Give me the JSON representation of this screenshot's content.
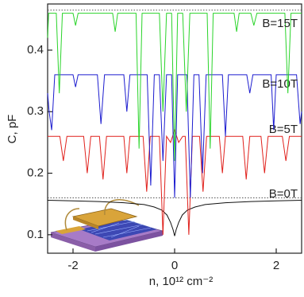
{
  "chart_data": {
    "type": "line",
    "xlabel": "n, 10¹² cm⁻²",
    "ylabel": "C, pF",
    "xlim": [
      -2.5,
      2.5
    ],
    "ylim": [
      0.07,
      0.475
    ],
    "xticks": [
      -2,
      0,
      2
    ],
    "yticks": [
      0.1,
      0.2,
      0.3,
      0.4
    ],
    "reference_lines": [
      0.465,
      0.16
    ],
    "series": [
      {
        "name": "B=0T",
        "color": "#111111",
        "x": [
          -2.5,
          -2.0,
          -1.5,
          -1.0,
          -0.6,
          -0.4,
          -0.25,
          -0.15,
          -0.08,
          -0.03,
          0,
          0.03,
          0.08,
          0.15,
          0.25,
          0.4,
          0.6,
          1.0,
          1.5,
          2.0,
          2.5
        ],
        "values": [
          0.156,
          0.155,
          0.154,
          0.152,
          0.149,
          0.145,
          0.14,
          0.132,
          0.12,
          0.108,
          0.098,
          0.108,
          0.12,
          0.132,
          0.14,
          0.145,
          0.149,
          0.152,
          0.154,
          0.155,
          0.156
        ]
      },
      {
        "name": "B=5T",
        "color": "#e0201b",
        "x": [
          -2.5,
          -2.26,
          -2.19,
          -2.12,
          -1.79,
          -1.72,
          -1.65,
          -1.48,
          -1.41,
          -1.34,
          -1.0,
          -0.94,
          -0.88,
          -0.62,
          -0.55,
          -0.48,
          -0.3,
          -0.23,
          -0.16,
          -0.08,
          0,
          0.08,
          0.16,
          0.21,
          0.28,
          0.35,
          0.49,
          0.56,
          0.63,
          0.88,
          0.94,
          1.0,
          1.34,
          1.41,
          1.48,
          1.7,
          1.77,
          1.84,
          2.12,
          2.19,
          2.26,
          2.5
        ],
        "values": [
          0.26,
          0.26,
          0.22,
          0.26,
          0.26,
          0.2,
          0.26,
          0.26,
          0.19,
          0.26,
          0.26,
          0.2,
          0.26,
          0.26,
          0.17,
          0.26,
          0.26,
          0.1,
          0.26,
          0.25,
          0.27,
          0.25,
          0.26,
          0.26,
          0.1,
          0.26,
          0.26,
          0.17,
          0.26,
          0.26,
          0.2,
          0.26,
          0.26,
          0.19,
          0.26,
          0.26,
          0.2,
          0.26,
          0.26,
          0.22,
          0.26,
          0.26
        ]
      },
      {
        "name": "B=10T",
        "color": "#1c1ccf",
        "x": [
          -2.5,
          -2.47,
          -2.42,
          -2.36,
          -2.0,
          -1.95,
          -1.9,
          -1.52,
          -1.45,
          -1.38,
          -1.0,
          -0.94,
          -0.88,
          -0.54,
          -0.47,
          -0.4,
          -0.3,
          -0.23,
          -0.16,
          -0.06,
          0,
          0.06,
          0.24,
          0.31,
          0.38,
          0.48,
          0.55,
          0.62,
          0.94,
          1.0,
          1.06,
          1.42,
          1.48,
          1.54,
          1.9,
          1.95,
          2.0,
          2.4,
          2.47,
          2.5
        ],
        "values": [
          0.33,
          0.3,
          0.27,
          0.36,
          0.36,
          0.34,
          0.36,
          0.36,
          0.28,
          0.36,
          0.36,
          0.3,
          0.36,
          0.36,
          0.18,
          0.36,
          0.36,
          0.22,
          0.36,
          0.36,
          0.16,
          0.36,
          0.36,
          0.16,
          0.36,
          0.36,
          0.2,
          0.36,
          0.36,
          0.26,
          0.36,
          0.36,
          0.33,
          0.36,
          0.36,
          0.27,
          0.36,
          0.36,
          0.28,
          0.3
        ]
      },
      {
        "name": "B=15T",
        "color": "#2ad42a",
        "x": [
          -2.5,
          -2.48,
          -2.33,
          -2.27,
          -2.21,
          -2.0,
          -1.95,
          -1.9,
          -1.22,
          -1.17,
          -1.12,
          -0.76,
          -0.7,
          -0.64,
          -0.3,
          -0.23,
          -0.16,
          -0.06,
          0,
          0.06,
          0.16,
          0.23,
          0.3,
          0.64,
          0.7,
          0.76,
          1.17,
          1.22,
          1.27,
          1.5,
          1.56,
          1.62,
          2.17,
          2.23,
          2.29,
          2.5
        ],
        "values": [
          0.42,
          0.46,
          0.46,
          0.33,
          0.46,
          0.46,
          0.44,
          0.46,
          0.46,
          0.43,
          0.46,
          0.46,
          0.24,
          0.46,
          0.46,
          0.3,
          0.46,
          0.46,
          0.22,
          0.46,
          0.46,
          0.3,
          0.46,
          0.46,
          0.24,
          0.46,
          0.46,
          0.43,
          0.46,
          0.46,
          0.44,
          0.46,
          0.46,
          0.33,
          0.46,
          0.46
        ]
      }
    ]
  }
}
